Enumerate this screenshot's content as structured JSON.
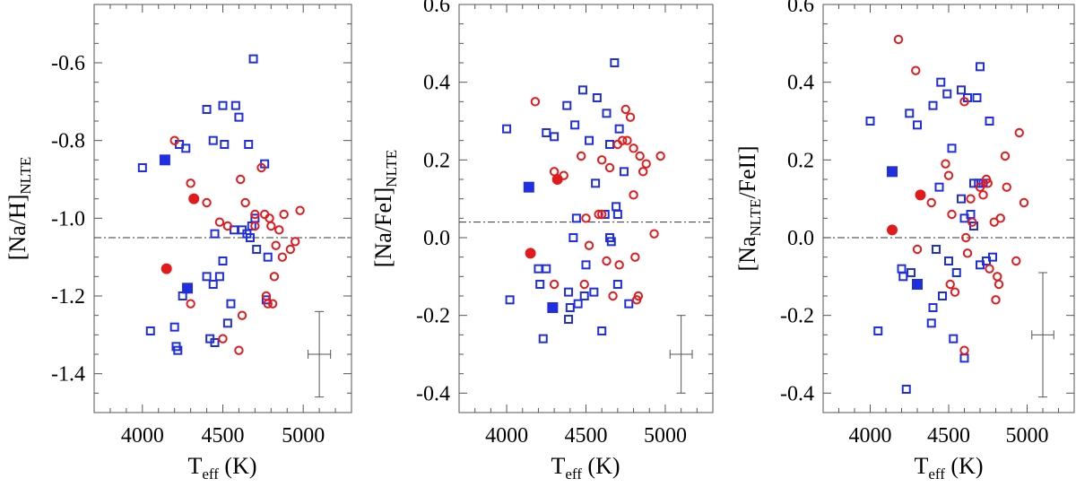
{
  "figure": {
    "description": "Three scatter panels of sodium abundance versus effective temperature"
  },
  "colors": {
    "blue": "#1f2fe0",
    "red": "#e31a1c",
    "axis": "#555555",
    "errorbar": "#555555"
  },
  "chart_data": [
    {
      "type": "scatter",
      "ylabel_main": "[Na/H]",
      "ylabel_sub": "NLTE",
      "xlabel_main": "T",
      "xlabel_sub": "eff",
      "xlabel_unit": " (K)",
      "xlim": [
        3700,
        5300
      ],
      "ylim": [
        -1.5,
        -0.45
      ],
      "xticks": [
        4000,
        4500,
        5000
      ],
      "yticks": [
        -0.6,
        -0.8,
        -1.0,
        -1.2,
        -1.4
      ],
      "ytick_labels": [
        "-0.6",
        "-0.8",
        "-1.0",
        "-1.2",
        "-1.4"
      ],
      "xtick_labels": [
        "4000",
        "4500",
        "5000"
      ],
      "reference_line": -1.05,
      "errorbar": {
        "x": 5100,
        "y": -1.35,
        "xerr": 70,
        "yerr": 0.11
      },
      "series": [
        {
          "name": "blue open squares",
          "color": "blue",
          "marker": "square-open",
          "points": [
            [
              4000,
              -0.87
            ],
            [
              4050,
              -1.29
            ],
            [
              4200,
              -1.28
            ],
            [
              4210,
              -1.33
            ],
            [
              4220,
              -1.34
            ],
            [
              4230,
              -0.81
            ],
            [
              4250,
              -1.2
            ],
            [
              4270,
              -0.82
            ],
            [
              4400,
              -0.72
            ],
            [
              4400,
              -1.15
            ],
            [
              4420,
              -1.31
            ],
            [
              4440,
              -0.8
            ],
            [
              4440,
              -1.17
            ],
            [
              4450,
              -1.04
            ],
            [
              4450,
              -1.32
            ],
            [
              4480,
              -1.15
            ],
            [
              4500,
              -0.71
            ],
            [
              4500,
              -1.11
            ],
            [
              4510,
              -0.81
            ],
            [
              4530,
              -1.27
            ],
            [
              4550,
              -1.22
            ],
            [
              4570,
              -1.03
            ],
            [
              4580,
              -0.71
            ],
            [
              4600,
              -0.74
            ],
            [
              4620,
              -1.03
            ],
            [
              4650,
              -1.04
            ],
            [
              4660,
              -0.81
            ],
            [
              4670,
              -1.05
            ],
            [
              4680,
              -1.02
            ],
            [
              4690,
              -0.59
            ],
            [
              4700,
              -1.0
            ],
            [
              4710,
              -1.08
            ],
            [
              4760,
              -0.86
            ],
            [
              4770,
              -1.21
            ],
            [
              4780,
              -1.1
            ]
          ]
        },
        {
          "name": "red open circles",
          "color": "red",
          "marker": "circle-open",
          "points": [
            [
              4200,
              -0.8
            ],
            [
              4300,
              -0.91
            ],
            [
              4300,
              -1.22
            ],
            [
              4400,
              -0.96
            ],
            [
              4480,
              -1.01
            ],
            [
              4500,
              -1.31
            ],
            [
              4530,
              -1.02
            ],
            [
              4600,
              -1.34
            ],
            [
              4610,
              -0.9
            ],
            [
              4620,
              -1.25
            ],
            [
              4640,
              -0.96
            ],
            [
              4700,
              -0.99
            ],
            [
              4700,
              -1.02
            ],
            [
              4740,
              -0.87
            ],
            [
              4760,
              -0.99
            ],
            [
              4770,
              -1.2
            ],
            [
              4780,
              -1.22
            ],
            [
              4790,
              -1.0
            ],
            [
              4800,
              -1.02
            ],
            [
              4810,
              -1.22
            ],
            [
              4820,
              -1.15
            ],
            [
              4830,
              -1.07
            ],
            [
              4850,
              -1.03
            ],
            [
              4870,
              -1.1
            ],
            [
              4880,
              -0.99
            ],
            [
              4920,
              -1.08
            ],
            [
              4950,
              -1.06
            ],
            [
              4980,
              -0.98
            ]
          ]
        },
        {
          "name": "blue filled squares",
          "color": "blue",
          "marker": "square-filled",
          "points": [
            [
              4140,
              -0.85
            ],
            [
              4280,
              -1.18
            ]
          ]
        },
        {
          "name": "red filled circles",
          "color": "red",
          "marker": "circle-filled",
          "points": [
            [
              4150,
              -1.13
            ],
            [
              4320,
              -0.95
            ]
          ]
        }
      ]
    },
    {
      "type": "scatter",
      "ylabel_main": "[Na/FeI]",
      "ylabel_sub": "NLTE",
      "xlabel_main": "T",
      "xlabel_sub": "eff",
      "xlabel_unit": " (K)",
      "xlim": [
        3700,
        5300
      ],
      "ylim": [
        -0.45,
        0.6
      ],
      "xticks": [
        4000,
        4500,
        5000
      ],
      "yticks": [
        0.6,
        0.4,
        0.2,
        0.0,
        -0.2,
        -0.4
      ],
      "ytick_labels": [
        "0.6",
        "0.4",
        "0.2",
        "0.0",
        "-0.2",
        "-0.4"
      ],
      "xtick_labels": [
        "4000",
        "4500",
        "5000"
      ],
      "reference_line": 0.04,
      "errorbar": {
        "x": 5100,
        "y": -0.3,
        "xerr": 70,
        "yerr": 0.1
      },
      "series": [
        {
          "name": "blue open squares",
          "color": "blue",
          "marker": "square-open",
          "points": [
            [
              4000,
              0.28
            ],
            [
              4020,
              -0.16
            ],
            [
              4200,
              -0.08
            ],
            [
              4210,
              -0.12
            ],
            [
              4230,
              -0.26
            ],
            [
              4250,
              0.27
            ],
            [
              4250,
              -0.08
            ],
            [
              4300,
              0.26
            ],
            [
              4380,
              0.34
            ],
            [
              4390,
              -0.14
            ],
            [
              4390,
              -0.21
            ],
            [
              4400,
              -0.18
            ],
            [
              4420,
              0.0
            ],
            [
              4430,
              0.29
            ],
            [
              4440,
              0.05
            ],
            [
              4450,
              -0.17
            ],
            [
              4480,
              0.38
            ],
            [
              4490,
              -0.15
            ],
            [
              4500,
              -0.07
            ],
            [
              4520,
              0.25
            ],
            [
              4550,
              -0.14
            ],
            [
              4560,
              0.14
            ],
            [
              4570,
              0.36
            ],
            [
              4600,
              -0.24
            ],
            [
              4620,
              0.06
            ],
            [
              4630,
              0.32
            ],
            [
              4650,
              0.24
            ],
            [
              4650,
              0.0
            ],
            [
              4660,
              -0.01
            ],
            [
              4680,
              0.45
            ],
            [
              4690,
              0.08
            ],
            [
              4700,
              -0.12
            ],
            [
              4700,
              0.06
            ],
            [
              4710,
              0.28
            ],
            [
              4740,
              0.17
            ],
            [
              4770,
              -0.17
            ]
          ]
        },
        {
          "name": "red open circles",
          "color": "red",
          "marker": "circle-open",
          "points": [
            [
              4180,
              0.35
            ],
            [
              4300,
              0.17
            ],
            [
              4300,
              -0.12
            ],
            [
              4360,
              0.16
            ],
            [
              4470,
              0.21
            ],
            [
              4490,
              -0.12
            ],
            [
              4500,
              0.05
            ],
            [
              4520,
              -0.02
            ],
            [
              4580,
              0.06
            ],
            [
              4600,
              0.2
            ],
            [
              4600,
              0.06
            ],
            [
              4630,
              -0.06
            ],
            [
              4650,
              0.18
            ],
            [
              4670,
              -0.15
            ],
            [
              4700,
              0.24
            ],
            [
              4710,
              -0.07
            ],
            [
              4730,
              0.25
            ],
            [
              4750,
              0.33
            ],
            [
              4760,
              0.25
            ],
            [
              4780,
              0.31
            ],
            [
              4800,
              0.11
            ],
            [
              4800,
              0.23
            ],
            [
              4810,
              -0.05
            ],
            [
              4820,
              -0.16
            ],
            [
              4830,
              -0.15
            ],
            [
              4840,
              0.21
            ],
            [
              4860,
              0.17
            ],
            [
              4880,
              0.19
            ],
            [
              4930,
              0.01
            ],
            [
              4970,
              0.21
            ]
          ]
        },
        {
          "name": "blue filled squares",
          "color": "blue",
          "marker": "square-filled",
          "points": [
            [
              4140,
              0.13
            ],
            [
              4290,
              -0.18
            ]
          ]
        },
        {
          "name": "red filled circles",
          "color": "red",
          "marker": "circle-filled",
          "points": [
            [
              4150,
              -0.04
            ],
            [
              4320,
              0.15
            ]
          ]
        }
      ]
    },
    {
      "type": "scatter",
      "ylabel_main": "[Na",
      "ylabel_sub": "NLTE",
      "ylabel_tail": "/FeII]",
      "xlabel_main": "T",
      "xlabel_sub": "eff",
      "xlabel_unit": " (K)",
      "xlim": [
        3700,
        5300
      ],
      "ylim": [
        -0.45,
        0.6
      ],
      "xticks": [
        4000,
        4500,
        5000
      ],
      "yticks": [
        0.6,
        0.4,
        0.2,
        0.0,
        -0.2,
        -0.4
      ],
      "ytick_labels": [
        "0.6",
        "0.4",
        "0.2",
        "0.0",
        "-0.2",
        "-0.4"
      ],
      "xtick_labels": [
        "4000",
        "4500",
        "5000"
      ],
      "reference_line": 0.0,
      "errorbar": {
        "x": 5100,
        "y": -0.25,
        "xerr": 70,
        "yerr": 0.16
      },
      "series": [
        {
          "name": "blue open squares",
          "color": "blue",
          "marker": "square-open",
          "points": [
            [
              4000,
              0.3
            ],
            [
              4050,
              -0.24
            ],
            [
              4200,
              -0.08
            ],
            [
              4210,
              -0.1
            ],
            [
              4230,
              -0.39
            ],
            [
              4250,
              0.32
            ],
            [
              4260,
              -0.09
            ],
            [
              4300,
              0.29
            ],
            [
              4390,
              -0.22
            ],
            [
              4400,
              -0.18
            ],
            [
              4400,
              0.34
            ],
            [
              4420,
              -0.03
            ],
            [
              4440,
              0.13
            ],
            [
              4450,
              0.4
            ],
            [
              4460,
              -0.15
            ],
            [
              4490,
              0.37
            ],
            [
              4500,
              -0.06
            ],
            [
              4520,
              0.23
            ],
            [
              4530,
              -0.26
            ],
            [
              4550,
              -0.09
            ],
            [
              4580,
              0.1
            ],
            [
              4580,
              0.38
            ],
            [
              4600,
              0.05
            ],
            [
              4600,
              -0.31
            ],
            [
              4620,
              0.36
            ],
            [
              4640,
              0.06
            ],
            [
              4660,
              0.14
            ],
            [
              4660,
              0.03
            ],
            [
              4680,
              0.36
            ],
            [
              4690,
              0.14
            ],
            [
              4700,
              0.44
            ],
            [
              4700,
              -0.07
            ],
            [
              4720,
              0.14
            ],
            [
              4740,
              -0.06
            ],
            [
              4760,
              0.3
            ],
            [
              4780,
              -0.05
            ]
          ]
        },
        {
          "name": "red open circles",
          "color": "red",
          "marker": "circle-open",
          "points": [
            [
              4180,
              0.51
            ],
            [
              4290,
              0.43
            ],
            [
              4300,
              -0.03
            ],
            [
              4390,
              0.09
            ],
            [
              4480,
              0.19
            ],
            [
              4500,
              0.16
            ],
            [
              4510,
              -0.12
            ],
            [
              4520,
              0.06
            ],
            [
              4540,
              -0.14
            ],
            [
              4600,
              0.35
            ],
            [
              4600,
              -0.29
            ],
            [
              4610,
              0.0
            ],
            [
              4620,
              -0.04
            ],
            [
              4640,
              0.1
            ],
            [
              4650,
              0.04
            ],
            [
              4700,
              0.13
            ],
            [
              4720,
              0.11
            ],
            [
              4740,
              0.15
            ],
            [
              4750,
              0.14
            ],
            [
              4760,
              -0.08
            ],
            [
              4790,
              0.04
            ],
            [
              4800,
              -0.16
            ],
            [
              4810,
              -0.1
            ],
            [
              4820,
              -0.12
            ],
            [
              4830,
              0.05
            ],
            [
              4860,
              0.21
            ],
            [
              4870,
              0.13
            ],
            [
              4930,
              -0.06
            ],
            [
              4950,
              0.27
            ],
            [
              4980,
              0.09
            ]
          ]
        },
        {
          "name": "blue filled squares",
          "color": "blue",
          "marker": "square-filled",
          "points": [
            [
              4140,
              0.17
            ],
            [
              4300,
              -0.12
            ]
          ]
        },
        {
          "name": "red filled circles",
          "color": "red",
          "marker": "circle-filled",
          "points": [
            [
              4140,
              0.02
            ],
            [
              4320,
              0.11
            ]
          ]
        }
      ]
    }
  ]
}
